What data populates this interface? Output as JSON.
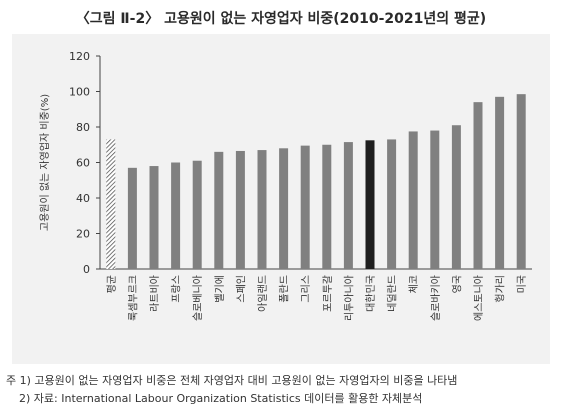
{
  "title": "〈그림 Ⅱ-2〉 고용원이 없는 자영업자 비중(2010-2021년의 평균)",
  "notes": [
    "주 1) 고용원이 없는 자영업자 비중은 전체 자영업자 대비 고용원이 없는 자영업자의 비중을 나타냄",
    "2) 자료: International Labour Organization Statistics 데이터를 활용한 자체분석"
  ],
  "colors": {
    "bar": "#808080",
    "highlight": "#1f1f1f",
    "average_hatch": "#555555",
    "background": "#f2f2f2"
  },
  "chart_data": {
    "type": "bar",
    "ylabel": "고용원이 없는 자영업자 비중(%)",
    "ylim": [
      0,
      120
    ],
    "yticks": [
      0,
      20,
      40,
      60,
      80,
      100,
      120
    ],
    "grid": false,
    "categories": [
      "평균",
      "룩셈부르크",
      "라트비아",
      "프랑스",
      "슬로베니아",
      "벨기에",
      "스페인",
      "아일랜드",
      "폴란드",
      "그리스",
      "포르투갈",
      "리투아니아",
      "대한민국",
      "네덜란드",
      "체코",
      "슬로바키아",
      "영국",
      "에스토니아",
      "헝가리",
      "미국"
    ],
    "values": [
      73,
      57,
      58,
      60,
      61,
      66,
      66.5,
      67,
      68,
      69.5,
      70,
      71.5,
      72.5,
      73,
      77.5,
      78,
      81,
      94,
      97,
      98.5
    ],
    "highlight_category": "대한민국",
    "hatched_category": "평균"
  }
}
